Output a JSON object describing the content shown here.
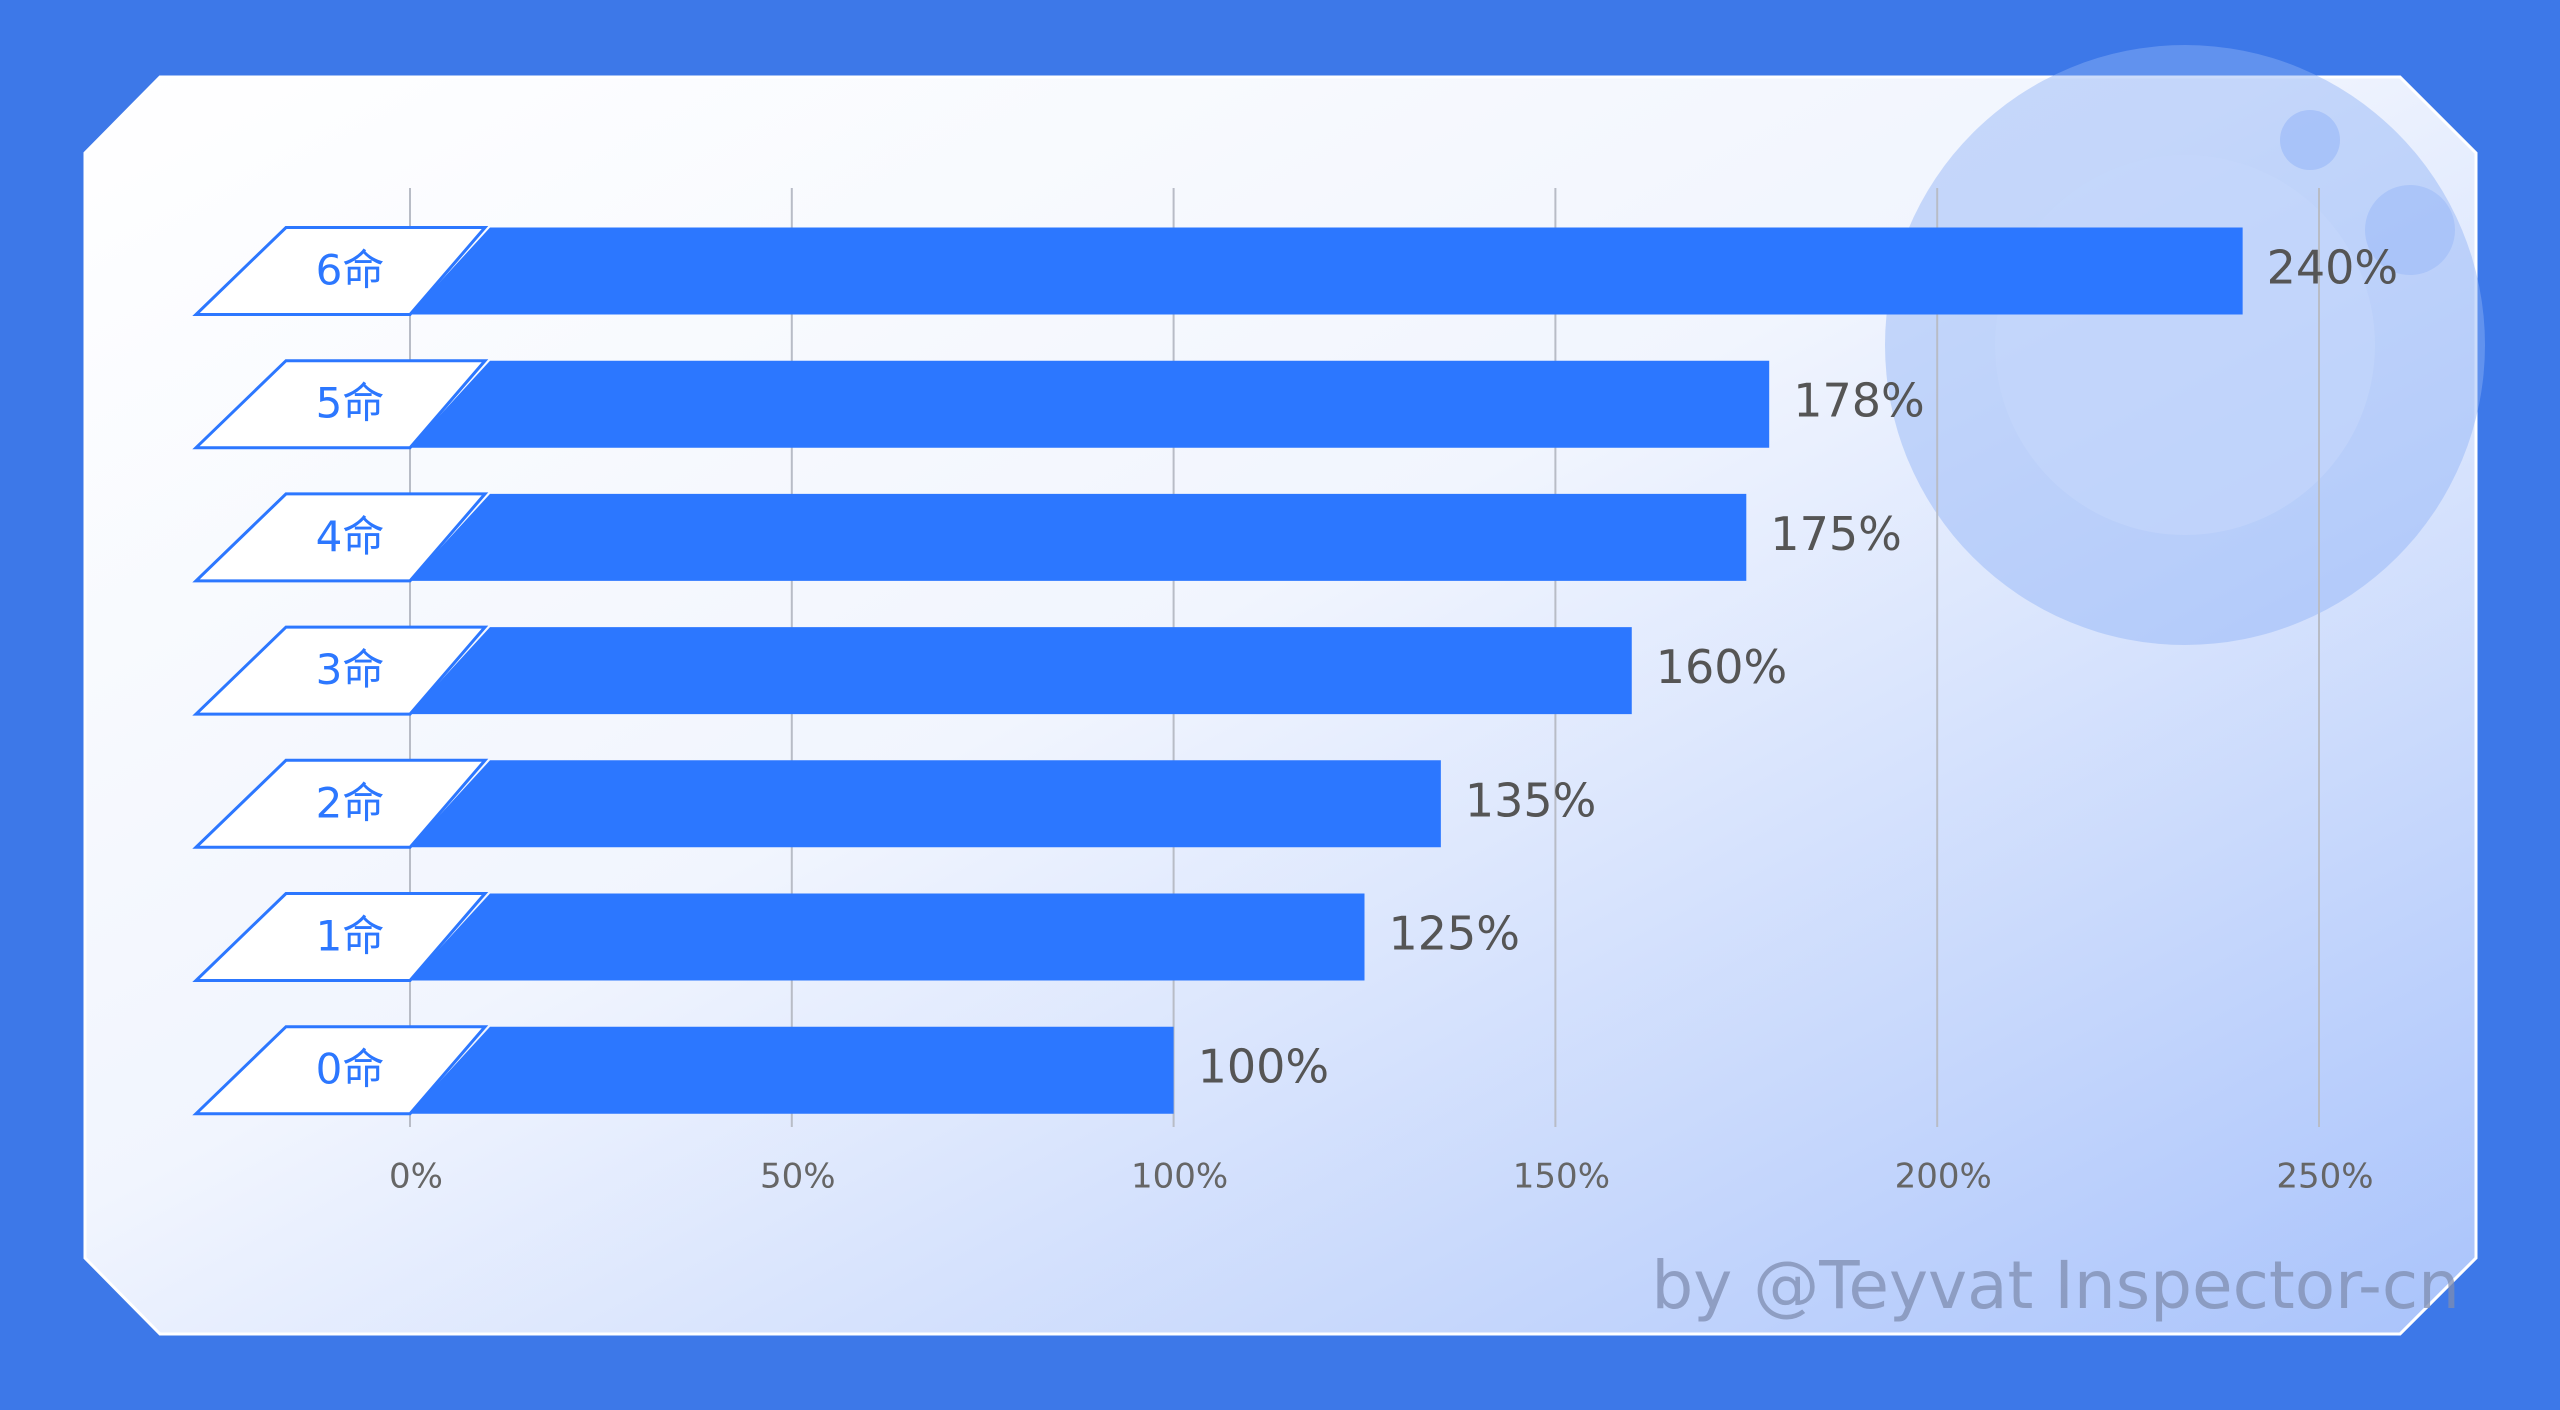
{
  "chart_data": {
    "type": "bar",
    "orientation": "horizontal",
    "categories": [
      "6命",
      "5命",
      "4命",
      "3命",
      "2命",
      "1命",
      "0命"
    ],
    "values": [
      240,
      178,
      175,
      160,
      135,
      125,
      100
    ],
    "value_labels": [
      "240%",
      "178%",
      "175%",
      "160%",
      "135%",
      "125%",
      "100%"
    ],
    "color": "#2c77ff",
    "xlim": [
      0,
      250
    ],
    "xticks": [
      {
        "value": 0,
        "label": "0%"
      },
      {
        "value": 50,
        "label": "50%"
      },
      {
        "value": 100,
        "label": "100%"
      },
      {
        "value": 150,
        "label": "150%"
      },
      {
        "value": 200,
        "label": "200%"
      },
      {
        "value": 250,
        "label": "250%"
      }
    ],
    "grid": true,
    "annotation": "by @Teyvat Inspector-cn"
  }
}
